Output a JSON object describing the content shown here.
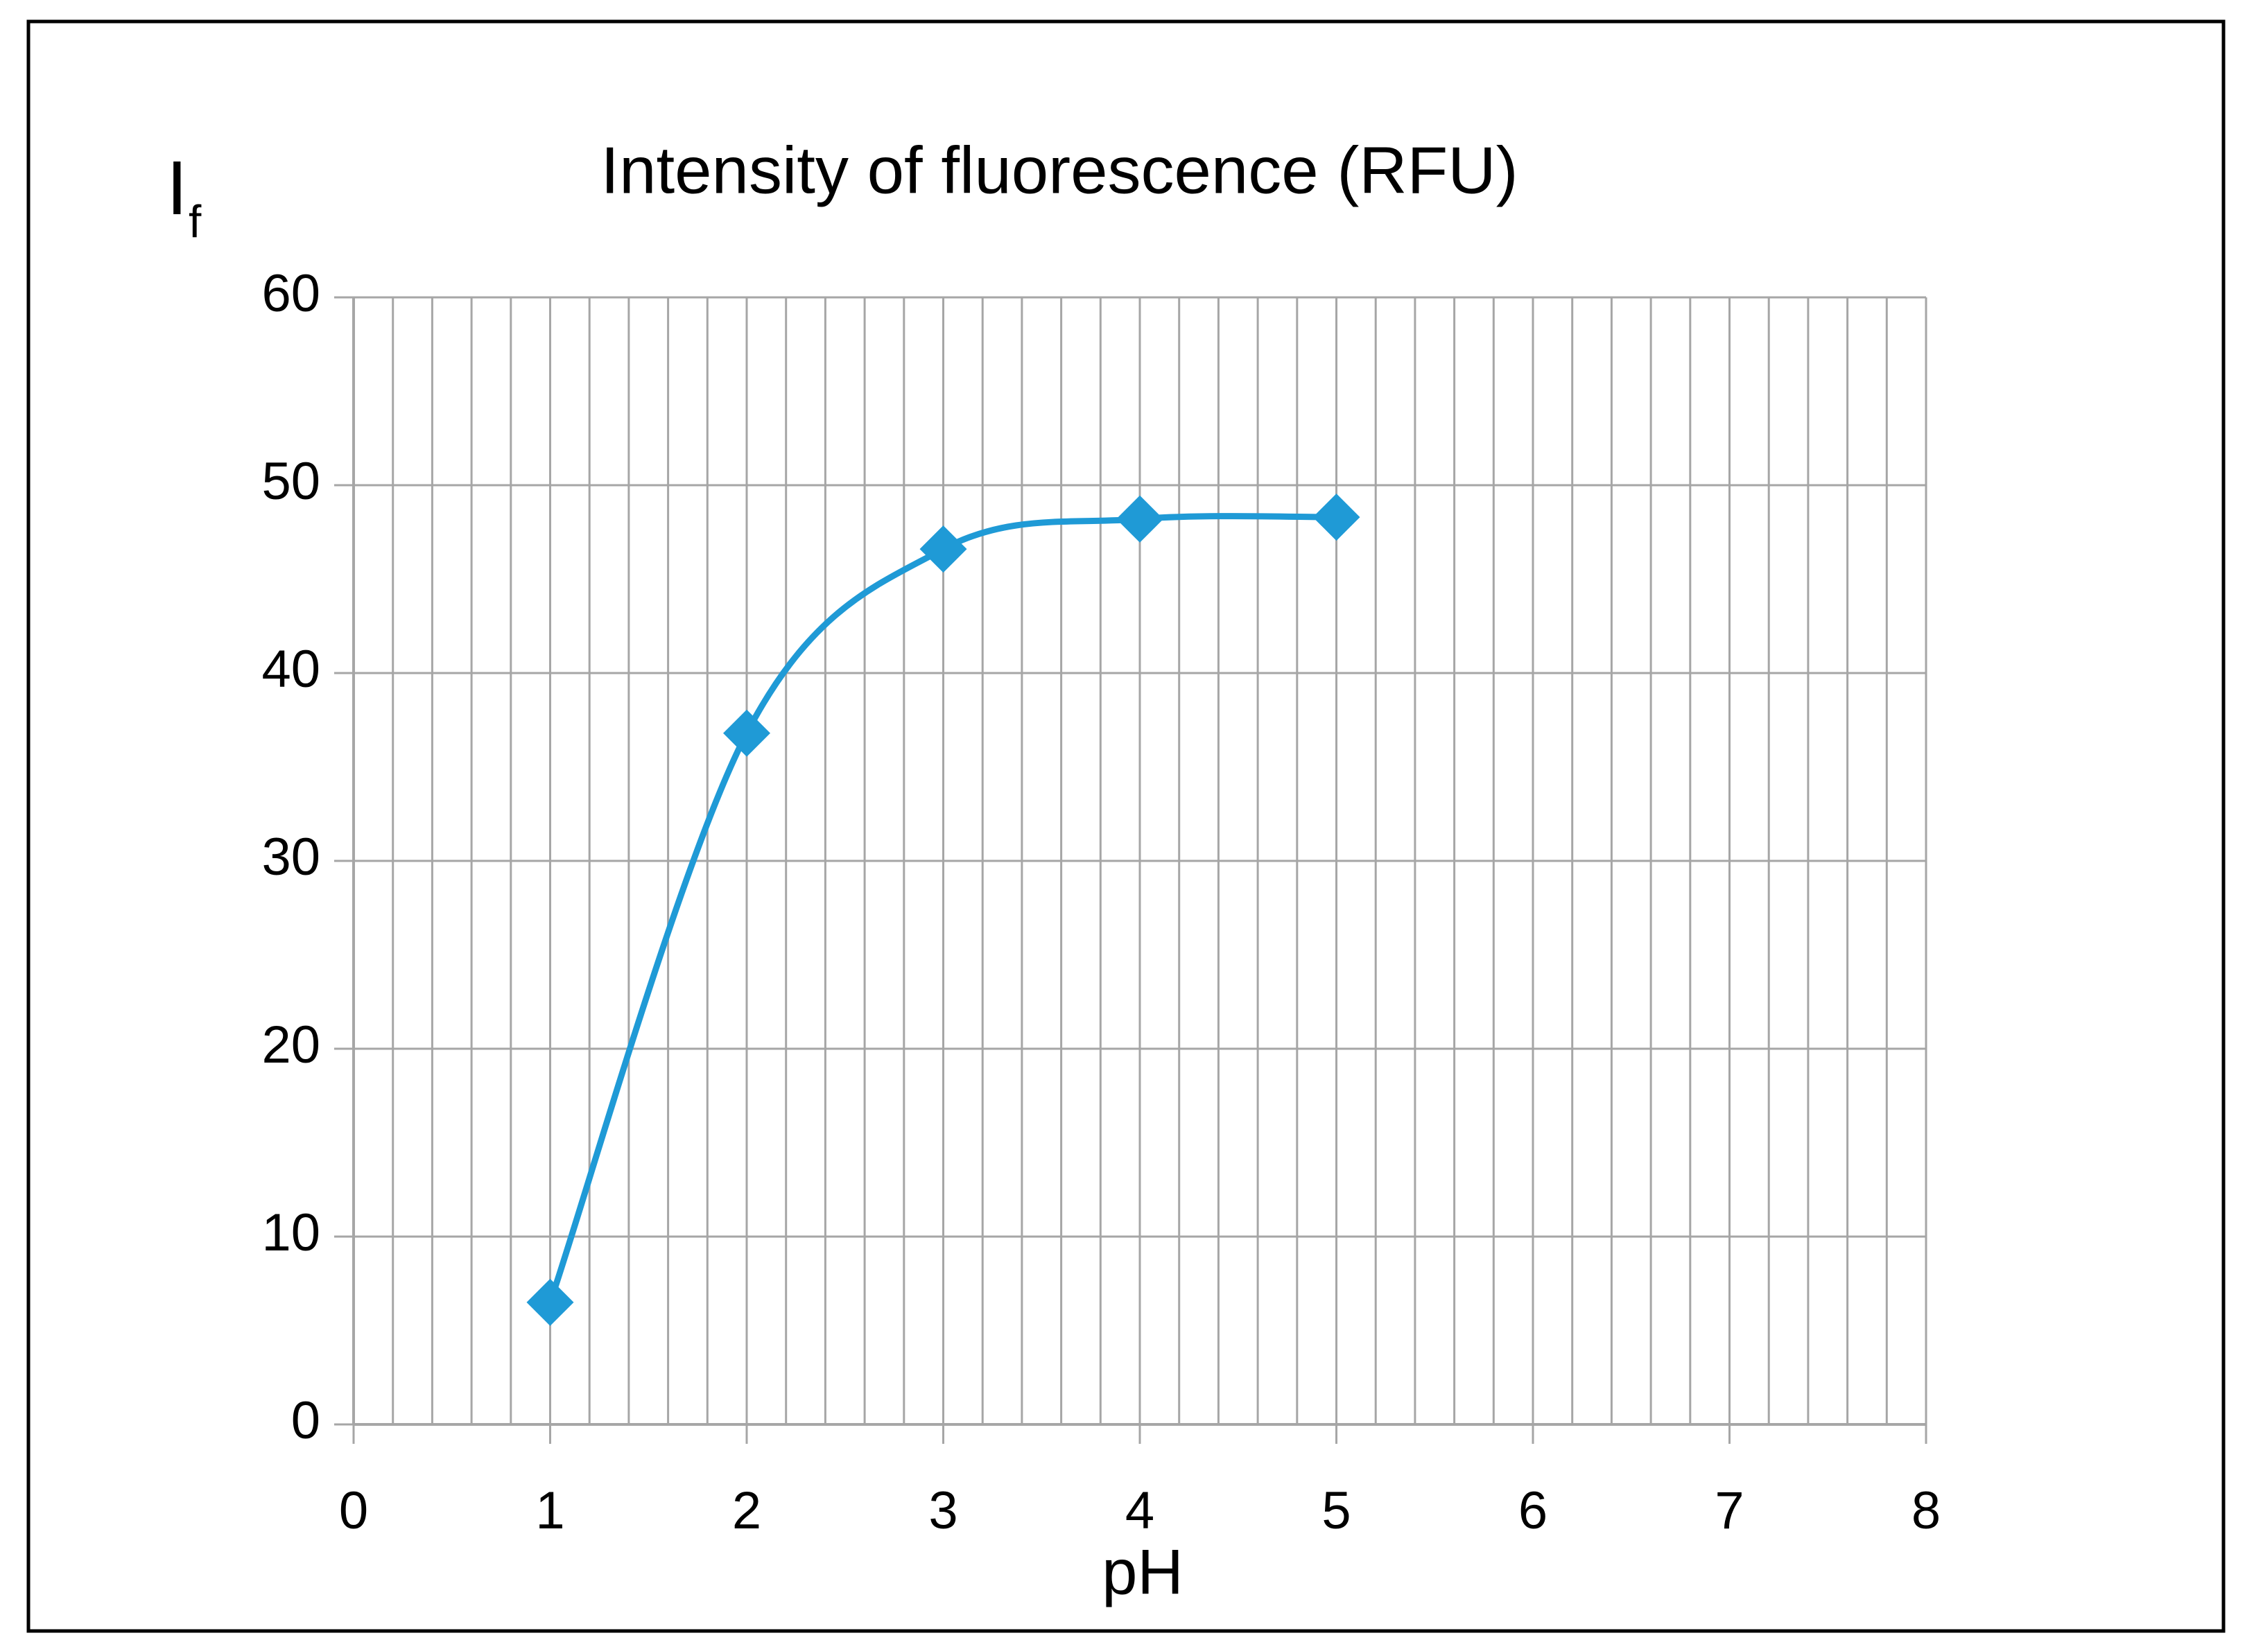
{
  "chart_data": {
    "type": "line",
    "title": "Intensity of fluorescence (RFU)",
    "ylabel": "I",
    "ylabel_sub": "f",
    "xlabel": "pH",
    "x": [
      1,
      2,
      3,
      4,
      5
    ],
    "values": [
      6.5,
      36.8,
      46.6,
      48.2,
      48.3
    ],
    "color": "#1f9ad6",
    "smooth": true,
    "marker": "diamond",
    "xlim": [
      0,
      8
    ],
    "xticks": [
      0,
      1,
      2,
      3,
      4,
      5,
      6,
      7,
      8
    ],
    "ylim": [
      0,
      60
    ],
    "yticks": [
      0,
      10,
      20,
      30,
      40,
      50,
      60
    ],
    "x_minor_step": 0.2,
    "grid": true
  }
}
